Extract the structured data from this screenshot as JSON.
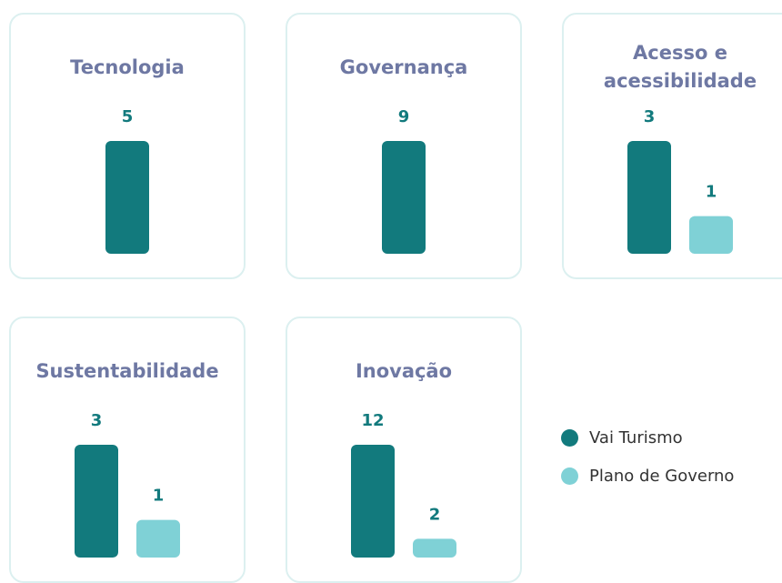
{
  "series": [
    {
      "name": "Vai Turismo",
      "color": "#127a7d"
    },
    {
      "name": "Plano de Governo",
      "color": "#7fd1d6"
    }
  ],
  "chart_data": [
    {
      "type": "bar",
      "title": "Tecnologia",
      "values": [
        5
      ]
    },
    {
      "type": "bar",
      "title": "Governança",
      "values": [
        9
      ]
    },
    {
      "type": "bar",
      "title": "Acesso e acessibilidade",
      "values": [
        3,
        1
      ]
    },
    {
      "type": "bar",
      "title": "Sustentabilidade",
      "values": [
        3,
        1
      ]
    },
    {
      "type": "bar",
      "title": "Inovação",
      "values": [
        12,
        2
      ]
    }
  ]
}
